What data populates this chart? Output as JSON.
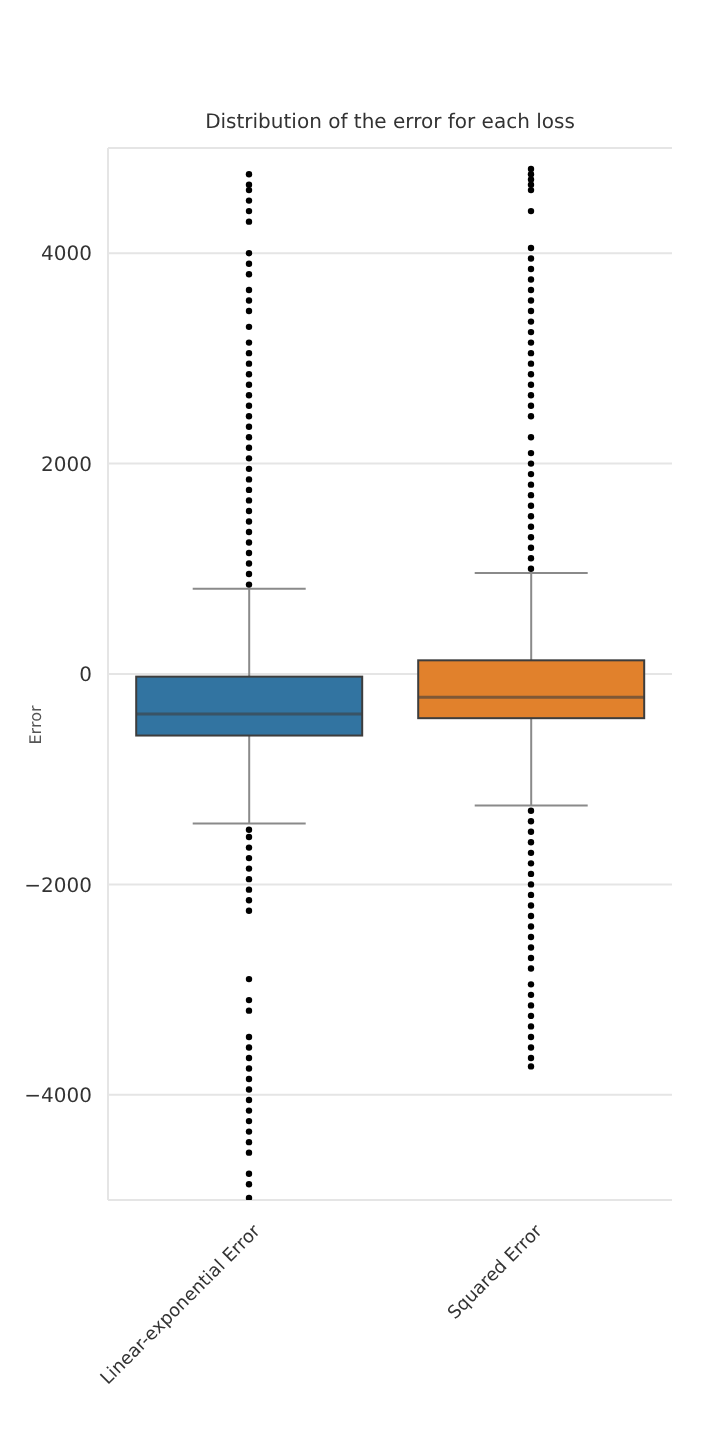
{
  "chart_data": {
    "type": "box",
    "title": "Distribution of the error for each loss",
    "ylabel": "Error",
    "categories": [
      "Linear-exponential Error",
      "Squared Error"
    ],
    "colors": [
      "#3274a1",
      "#e1812c"
    ],
    "boxes": [
      {
        "low": -1420,
        "q1": -585,
        "median": -380,
        "q3": -25,
        "high": 810,
        "outliers": [
          850,
          950,
          1050,
          1150,
          1250,
          1350,
          1450,
          1550,
          1650,
          1750,
          1850,
          1950,
          2050,
          2150,
          2250,
          2350,
          2450,
          2550,
          2650,
          2750,
          2850,
          2950,
          3050,
          3150,
          3300,
          3450,
          3550,
          3650,
          3800,
          3900,
          4000,
          4300,
          4400,
          4500,
          4600,
          4650,
          4750,
          -1480,
          -1550,
          -1650,
          -1750,
          -1850,
          -1950,
          -2050,
          -2150,
          -2250,
          -2900,
          -3100,
          -3200,
          -3450,
          -3550,
          -3650,
          -3750,
          -3850,
          -3950,
          -4050,
          -4150,
          -4250,
          -4350,
          -4450,
          -4550,
          -4750,
          -4850,
          -4980
        ]
      },
      {
        "low": -1250,
        "q1": -420,
        "median": -220,
        "q3": 130,
        "high": 960,
        "outliers": [
          1000,
          1100,
          1200,
          1300,
          1400,
          1500,
          1600,
          1700,
          1800,
          1900,
          2000,
          2100,
          2250,
          2450,
          2550,
          2650,
          2750,
          2850,
          2950,
          3050,
          3150,
          3250,
          3350,
          3450,
          3550,
          3650,
          3750,
          3850,
          3950,
          4050,
          4400,
          4600,
          4650,
          4700,
          4750,
          4800,
          -1300,
          -1400,
          -1500,
          -1600,
          -1700,
          -1800,
          -1900,
          -2000,
          -2100,
          -2200,
          -2300,
          -2400,
          -2500,
          -2600,
          -2700,
          -2800,
          -2950,
          -3050,
          -3150,
          -3250,
          -3350,
          -3450,
          -3550,
          -3650,
          -3730
        ]
      }
    ],
    "ylim": [
      -5000,
      5000
    ],
    "yticks": [
      -4000,
      -2000,
      0,
      2000,
      4000
    ],
    "grid": "y",
    "legend": false
  }
}
